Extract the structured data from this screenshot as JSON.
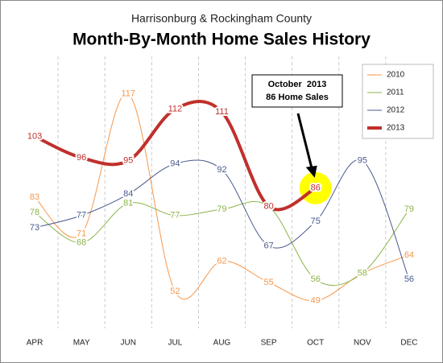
{
  "chart_data": {
    "type": "line",
    "subtitle": "Harrisonburg & Rockingham County",
    "title": "Month-By-Month Home Sales History",
    "categories": [
      "APR",
      "MAY",
      "JUN",
      "JUL",
      "AUG",
      "SEP",
      "OCT",
      "NOV",
      "DEC"
    ],
    "series": [
      {
        "name": "2010",
        "color": "#f7964a",
        "width": 1,
        "values": [
          83,
          71,
          117,
          52,
          62,
          55,
          49,
          58,
          64
        ],
        "value_labels": [
          83,
          71,
          117,
          52,
          62,
          55,
          49,
          null,
          64
        ]
      },
      {
        "name": "2011",
        "color": "#8db349",
        "width": 1,
        "values": [
          78,
          68,
          81,
          77,
          79,
          80,
          56,
          58,
          79
        ],
        "value_labels": [
          78,
          68,
          81,
          77,
          79,
          null,
          56,
          58,
          79
        ]
      },
      {
        "name": "2012",
        "color": "#4a5a8e",
        "width": 1,
        "values": [
          73,
          77,
          84,
          94,
          92,
          67,
          75,
          95,
          56
        ],
        "value_labels": [
          73,
          77,
          84,
          94,
          92,
          67,
          75,
          95,
          56
        ]
      },
      {
        "name": "2013",
        "color": "#c0302c",
        "width": 4,
        "values": [
          103,
          96,
          95,
          112,
          111,
          80,
          86,
          null,
          null
        ],
        "value_labels": [
          103,
          96,
          95,
          112,
          111,
          80,
          86,
          null,
          null
        ]
      }
    ],
    "ylim": [
      42,
      128
    ],
    "grid": true,
    "legend": "upper right",
    "annotation": {
      "lines": [
        "October  2013",
        "86 Home Sales"
      ],
      "series": 3,
      "index": 6,
      "highlight": "#ffff00"
    }
  }
}
